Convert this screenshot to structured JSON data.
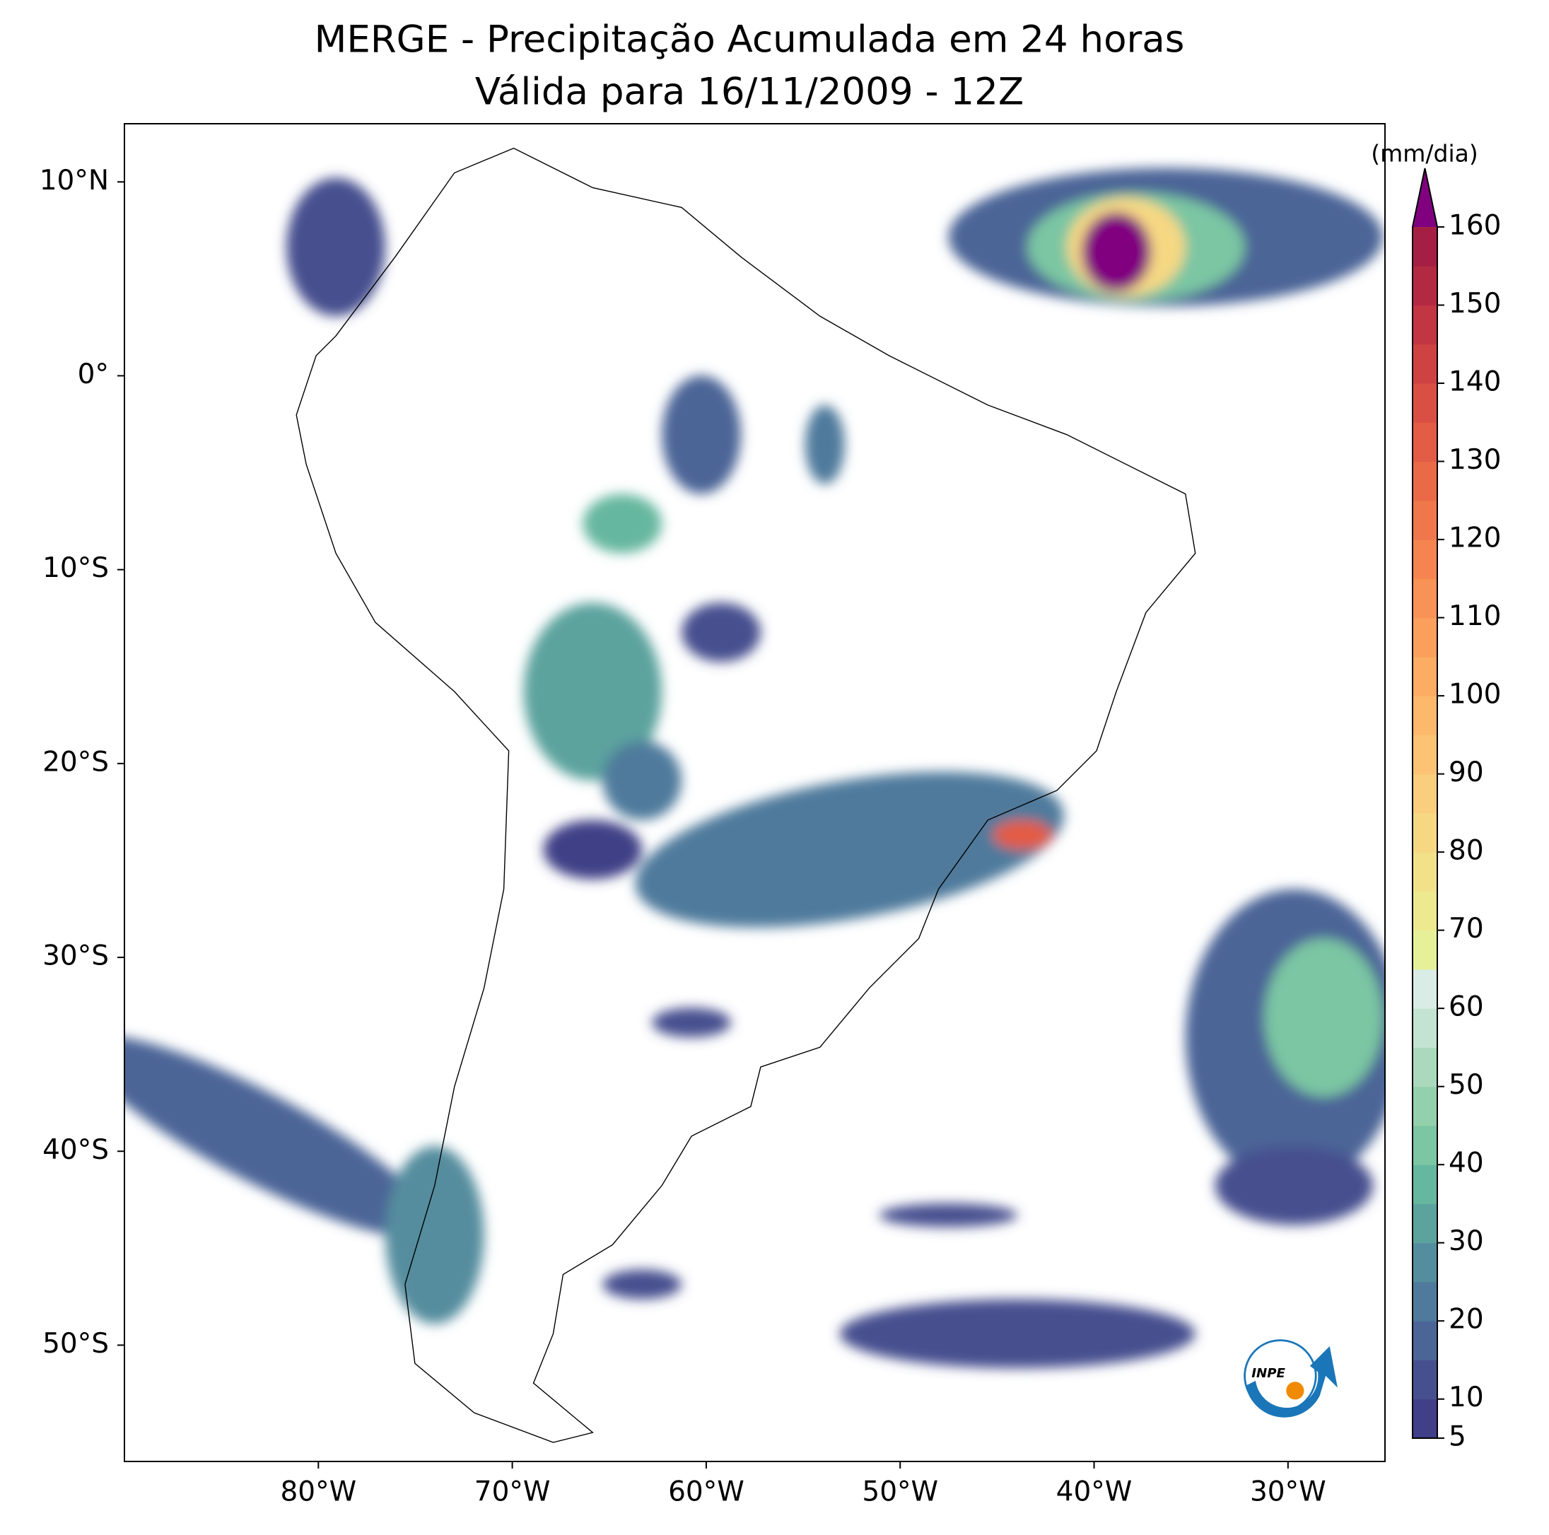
{
  "title": "MERGE - Precipitação Acumulada em 24 horas",
  "subtitle": "Válida para 16/11/2009 - 12Z",
  "map": {
    "xlim": [
      -90,
      -25
    ],
    "ylim": [
      -56,
      13
    ],
    "xticks": [
      {
        "value": -80,
        "label": "80°W"
      },
      {
        "value": -70,
        "label": "70°W"
      },
      {
        "value": -60,
        "label": "60°W"
      },
      {
        "value": -50,
        "label": "50°W"
      },
      {
        "value": -40,
        "label": "40°W"
      },
      {
        "value": -30,
        "label": "30°W"
      }
    ],
    "yticks": [
      {
        "value": 10,
        "label": "10°N"
      },
      {
        "value": 0,
        "label": "0°"
      },
      {
        "value": -10,
        "label": "10°S"
      },
      {
        "value": -20,
        "label": "20°S"
      },
      {
        "value": -30,
        "label": "30°S"
      },
      {
        "value": -40,
        "label": "40°S"
      },
      {
        "value": -50,
        "label": "50°S"
      }
    ]
  },
  "colorbar": {
    "label": "(mm/dia)",
    "levels": [
      5,
      10,
      15,
      20,
      25,
      30,
      35,
      40,
      45,
      50,
      55,
      60,
      65,
      70,
      75,
      80,
      85,
      90,
      95,
      100,
      105,
      110,
      115,
      120,
      125,
      130,
      135,
      140,
      145,
      150,
      155,
      160
    ],
    "colors": [
      "#403f87",
      "#47508f",
      "#4c6597",
      "#4f7a9c",
      "#548d9e",
      "#5ca39e",
      "#66b79f",
      "#7cc6a3",
      "#93d0ac",
      "#aad9bd",
      "#c3e4d2",
      "#d9ede6",
      "#e6f098",
      "#ede98f",
      "#f2e189",
      "#f6d883",
      "#f9ce7c",
      "#fbc373",
      "#fcb86b",
      "#fcac63",
      "#fb9f5c",
      "#f99256",
      "#f58450",
      "#f0774b",
      "#ea6947",
      "#e35c45",
      "#da4f43",
      "#cf4242",
      "#c23542",
      "#b42942",
      "#a51f44"
    ],
    "over_color": "#800080",
    "ticks": [
      5,
      10,
      20,
      30,
      40,
      50,
      60,
      70,
      80,
      90,
      100,
      110,
      120,
      130,
      140,
      150,
      160
    ]
  },
  "logo": {
    "text": "INPE"
  }
}
